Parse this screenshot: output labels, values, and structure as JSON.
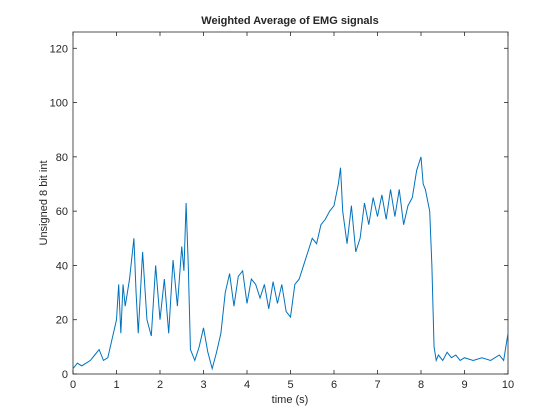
{
  "chart_data": {
    "type": "line",
    "title": "Weighted Average of EMG signals",
    "xlabel": "time (s)",
    "ylabel": "Unsigned 8 bit int",
    "x": [
      0,
      0.1,
      0.2,
      0.3,
      0.4,
      0.5,
      0.6,
      0.7,
      0.8,
      0.9,
      1.0,
      1.05,
      1.1,
      1.15,
      1.2,
      1.3,
      1.4,
      1.45,
      1.5,
      1.6,
      1.7,
      1.8,
      1.9,
      2.0,
      2.1,
      2.2,
      2.3,
      2.4,
      2.5,
      2.55,
      2.6,
      2.65,
      2.7,
      2.8,
      2.9,
      3.0,
      3.1,
      3.2,
      3.3,
      3.4,
      3.5,
      3.6,
      3.7,
      3.8,
      3.9,
      4.0,
      4.1,
      4.2,
      4.3,
      4.4,
      4.5,
      4.6,
      4.7,
      4.8,
      4.9,
      5.0,
      5.1,
      5.2,
      5.3,
      5.4,
      5.5,
      5.6,
      5.7,
      5.8,
      5.9,
      6.0,
      6.1,
      6.15,
      6.2,
      6.3,
      6.4,
      6.5,
      6.6,
      6.7,
      6.8,
      6.9,
      7.0,
      7.1,
      7.2,
      7.3,
      7.4,
      7.5,
      7.6,
      7.7,
      7.8,
      7.9,
      8.0,
      8.05,
      8.1,
      8.2,
      8.25,
      8.3,
      8.35,
      8.4,
      8.5,
      8.6,
      8.7,
      8.8,
      8.9,
      9.0,
      9.2,
      9.4,
      9.6,
      9.8,
      9.9,
      10.0
    ],
    "series": [
      {
        "name": "EMG",
        "color": "#0072bd",
        "values": [
          2,
          4,
          3,
          4,
          5,
          7,
          9,
          5,
          6,
          13,
          20,
          33,
          15,
          33,
          25,
          35,
          50,
          30,
          15,
          45,
          20,
          14,
          40,
          20,
          35,
          15,
          42,
          25,
          47,
          38,
          63,
          40,
          9,
          5,
          10,
          17,
          8,
          2,
          8,
          15,
          30,
          37,
          25,
          36,
          38,
          26,
          35,
          33,
          28,
          33,
          24,
          34,
          26,
          33,
          23,
          21,
          33,
          35,
          40,
          45,
          50,
          48,
          55,
          57,
          60,
          62,
          70,
          76,
          60,
          48,
          62,
          45,
          50,
          63,
          55,
          65,
          58,
          66,
          57,
          68,
          58,
          68,
          55,
          62,
          65,
          75,
          80,
          70,
          68,
          60,
          40,
          10,
          5,
          7,
          5,
          8,
          6,
          7,
          5,
          6,
          5,
          6,
          5,
          7,
          5,
          15
        ]
      }
    ],
    "xlim": [
      0,
      10
    ],
    "xticks": [
      0,
      1,
      2,
      3,
      4,
      5,
      6,
      7,
      8,
      9,
      10
    ],
    "ylim": [
      0,
      126
    ],
    "yticks": [
      0,
      20,
      40,
      60,
      80,
      100,
      120
    ]
  }
}
